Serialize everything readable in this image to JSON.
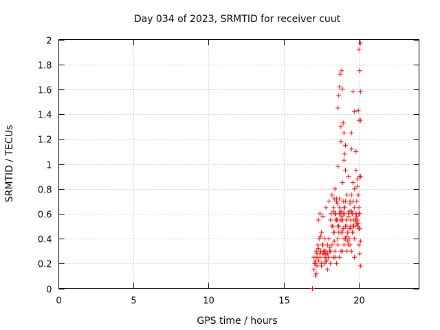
{
  "chart_data": {
    "type": "scatter",
    "title": "Day 034 of 2023, SRMTID for receiver cuut",
    "xlabel": "GPS time / hours",
    "ylabel": "SRMTID / TECUs",
    "xlim": [
      0,
      24
    ],
    "ylim": [
      0,
      2
    ],
    "xticks": [
      0,
      5,
      10,
      15,
      20
    ],
    "xtick_labels": [
      "0",
      "5",
      "10",
      "15",
      "20"
    ],
    "yticks": [
      0,
      0.2,
      0.4,
      0.6,
      0.8,
      1,
      1.2,
      1.4,
      1.6,
      1.8,
      2
    ],
    "ytick_labels": [
      "0",
      "0.2",
      "0.4",
      "0.6",
      "0.8",
      "1",
      "1.2",
      "1.4",
      "1.6",
      "1.8",
      "2"
    ],
    "grid": true,
    "marker": "+",
    "color": "#ff0000",
    "series": [
      {
        "name": "SRMTID",
        "x": [
          16.9,
          17.0,
          17.0,
          17.05,
          17.1,
          17.1,
          17.15,
          17.2,
          17.2,
          17.25,
          17.3,
          17.3,
          17.35,
          17.4,
          17.4,
          17.45,
          17.5,
          17.5,
          17.55,
          17.6,
          17.6,
          17.65,
          17.7,
          17.7,
          17.75,
          17.8,
          17.8,
          17.85,
          17.9,
          17.9,
          17.95,
          18.0,
          18.0,
          18.05,
          18.1,
          18.1,
          18.15,
          18.2,
          18.2,
          18.25,
          18.3,
          18.3,
          18.35,
          18.4,
          18.4,
          18.45,
          18.5,
          18.5,
          18.55,
          18.6,
          18.6,
          18.65,
          18.7,
          18.7,
          18.75,
          18.8,
          18.8,
          18.85,
          18.9,
          18.9,
          18.95,
          19.0,
          19.0,
          19.05,
          19.1,
          19.1,
          19.15,
          19.2,
          19.2,
          19.25,
          19.3,
          19.3,
          19.35,
          19.4,
          19.4,
          19.45,
          19.5,
          19.5,
          19.55,
          19.6,
          19.6,
          19.65,
          19.7,
          19.7,
          19.75,
          19.8,
          19.8,
          19.85,
          19.9,
          19.9,
          19.95,
          20.0,
          20.0,
          20.05,
          20.1,
          17.1,
          17.2,
          17.3,
          17.4,
          17.5,
          17.6,
          17.7,
          17.8,
          17.9,
          18.0,
          18.1,
          18.2,
          18.3,
          18.4,
          18.5,
          18.6,
          18.7,
          18.8,
          18.9,
          19.0,
          19.1,
          19.2,
          19.3,
          19.4,
          19.5,
          19.6,
          19.7,
          19.8,
          19.9,
          20.0,
          17.15,
          17.45,
          17.75,
          18.05,
          18.35,
          18.65,
          18.95,
          19.25,
          19.55,
          19.85,
          18.3,
          18.35,
          18.4,
          18.45,
          18.5,
          18.55,
          18.6,
          18.65,
          18.7,
          18.75,
          18.8,
          18.85,
          18.9,
          18.95,
          19.0,
          19.05,
          19.1,
          19.15,
          19.2,
          19.25,
          19.3,
          19.35,
          19.4,
          19.45,
          19.5,
          19.55,
          19.6,
          19.65,
          19.7,
          19.75,
          19.8,
          19.85,
          19.9,
          19.95,
          20.0,
          20.05,
          20.1,
          20.1,
          20.05,
          20.1,
          20.0,
          20.1,
          20.05,
          20.1,
          19.95,
          20.05,
          18.6,
          18.7,
          18.8,
          18.9,
          19.0,
          19.1,
          18.65,
          18.75,
          18.85,
          18.95,
          19.05,
          19.5,
          19.6,
          19.7,
          19.8,
          19.9,
          20.0
        ],
        "y": [
          0.0,
          0.15,
          0.25,
          0.2,
          0.1,
          0.22,
          0.3,
          0.18,
          0.28,
          0.35,
          0.22,
          0.55,
          0.4,
          0.25,
          0.6,
          0.3,
          0.18,
          0.45,
          0.35,
          0.28,
          0.58,
          0.3,
          0.2,
          0.4,
          0.25,
          0.3,
          0.65,
          0.22,
          0.15,
          0.35,
          0.25,
          0.4,
          0.7,
          0.3,
          0.2,
          0.55,
          0.6,
          0.35,
          0.75,
          0.5,
          0.25,
          0.65,
          0.45,
          0.3,
          0.8,
          0.6,
          0.2,
          0.7,
          0.55,
          0.4,
          0.98,
          0.5,
          0.25,
          0.72,
          0.6,
          0.3,
          1.18,
          0.55,
          0.45,
          0.85,
          0.7,
          0.35,
          1.03,
          0.65,
          0.4,
          0.95,
          0.55,
          0.3,
          0.75,
          0.45,
          0.6,
          0.9,
          0.4,
          0.35,
          0.7,
          0.5,
          0.3,
          1.12,
          0.6,
          0.45,
          0.85,
          0.5,
          0.25,
          0.8,
          0.55,
          0.6,
          0.95,
          0.7,
          0.5,
          0.88,
          0.75,
          0.35,
          1.35,
          0.6,
          0.9,
          0.2,
          0.25,
          0.32,
          0.28,
          0.2,
          0.35,
          0.3,
          0.22,
          0.28,
          0.4,
          0.3,
          0.5,
          0.45,
          0.25,
          0.55,
          0.35,
          0.65,
          0.45,
          0.3,
          0.4,
          0.5,
          0.42,
          0.35,
          0.48,
          0.62,
          0.5,
          0.4,
          0.55,
          0.5,
          0.48,
          0.12,
          0.42,
          0.27,
          0.33,
          0.38,
          0.5,
          0.6,
          0.38,
          0.45,
          0.52,
          0.62,
          0.72,
          0.6,
          0.55,
          0.72,
          0.68,
          0.5,
          0.45,
          0.6,
          0.55,
          0.62,
          0.58,
          0.55,
          0.48,
          0.65,
          0.6,
          0.7,
          0.55,
          0.5,
          0.45,
          0.58,
          0.62,
          0.68,
          0.55,
          0.75,
          0.6,
          0.7,
          0.55,
          0.65,
          0.5,
          0.6,
          0.58,
          0.55,
          0.52,
          0.6,
          0.48,
          0.38,
          1.58,
          1.75,
          1.97,
          1.92,
          1.35,
          0.28,
          0.18,
          1.43,
          0.9,
          1.45,
          1.62,
          1.3,
          1.6,
          1.25,
          1.15,
          1.55,
          1.72,
          1.75,
          1.33,
          1.08,
          1.25,
          1.58,
          1.42,
          1.1,
          0.82,
          0.65
        ]
      }
    ]
  }
}
